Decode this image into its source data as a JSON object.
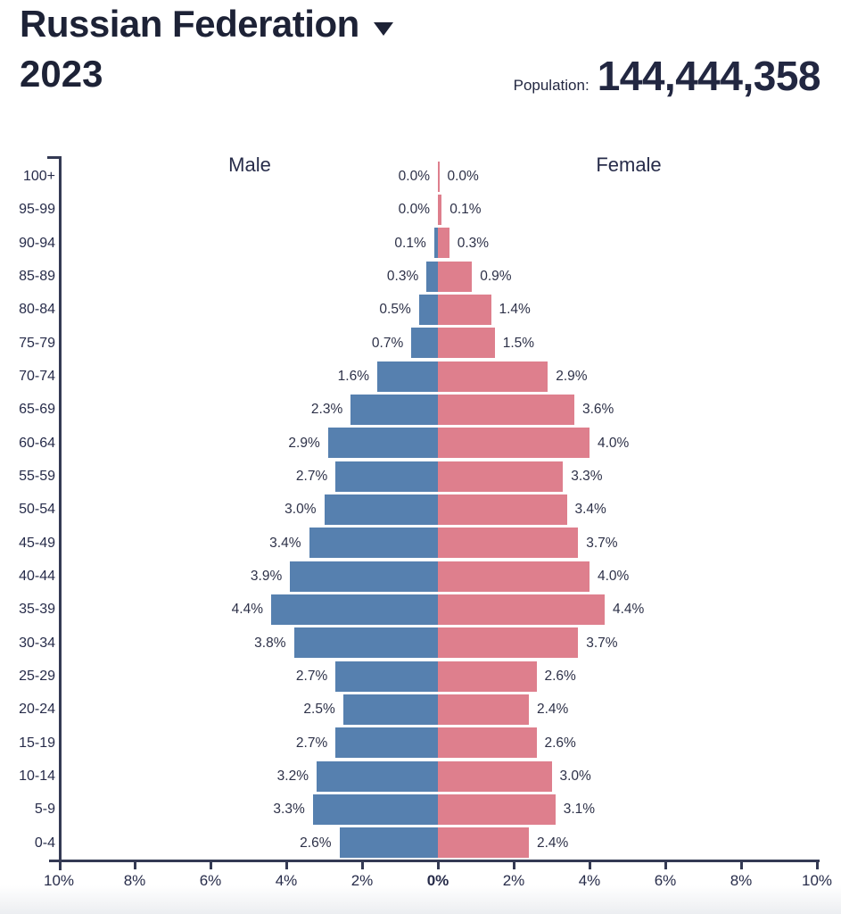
{
  "header": {
    "country": "Russian Federation",
    "year": "2023",
    "population_label": "Population:",
    "population_value": "144,444,358"
  },
  "chart_data": {
    "type": "bar",
    "subtype": "population-pyramid",
    "title": "Russian Federation 2023 population pyramid",
    "male_label": "Male",
    "female_label": "Female",
    "unit": "%",
    "age_groups": [
      "100+",
      "95-99",
      "90-94",
      "85-89",
      "80-84",
      "75-79",
      "70-74",
      "65-69",
      "60-64",
      "55-59",
      "50-54",
      "45-49",
      "40-44",
      "35-39",
      "30-34",
      "25-29",
      "20-24",
      "15-19",
      "10-14",
      "5-9",
      "0-4"
    ],
    "series": [
      {
        "name": "Male",
        "values": [
          0.0,
          0.0,
          0.1,
          0.3,
          0.5,
          0.7,
          1.6,
          2.3,
          2.9,
          2.7,
          3.0,
          3.4,
          3.9,
          4.4,
          3.8,
          2.7,
          2.5,
          2.7,
          3.2,
          3.3,
          2.6
        ]
      },
      {
        "name": "Female",
        "values": [
          0.0,
          0.1,
          0.3,
          0.9,
          1.4,
          1.5,
          2.9,
          3.6,
          4.0,
          3.3,
          3.4,
          3.7,
          4.0,
          4.4,
          3.7,
          2.6,
          2.4,
          2.6,
          3.0,
          3.1,
          2.4
        ]
      }
    ],
    "xlim": [
      -10,
      10
    ],
    "x_ticks": [
      "10%",
      "8%",
      "6%",
      "4%",
      "2%",
      "0%",
      "2%",
      "4%",
      "6%",
      "8%",
      "10%"
    ],
    "center_tick_index": 5,
    "grid": false,
    "legend_position": "top-inside",
    "colors": {
      "male": "#5680AF",
      "female": "#DE7F8D",
      "text": "#272c4a",
      "axis": "#343a54"
    }
  }
}
